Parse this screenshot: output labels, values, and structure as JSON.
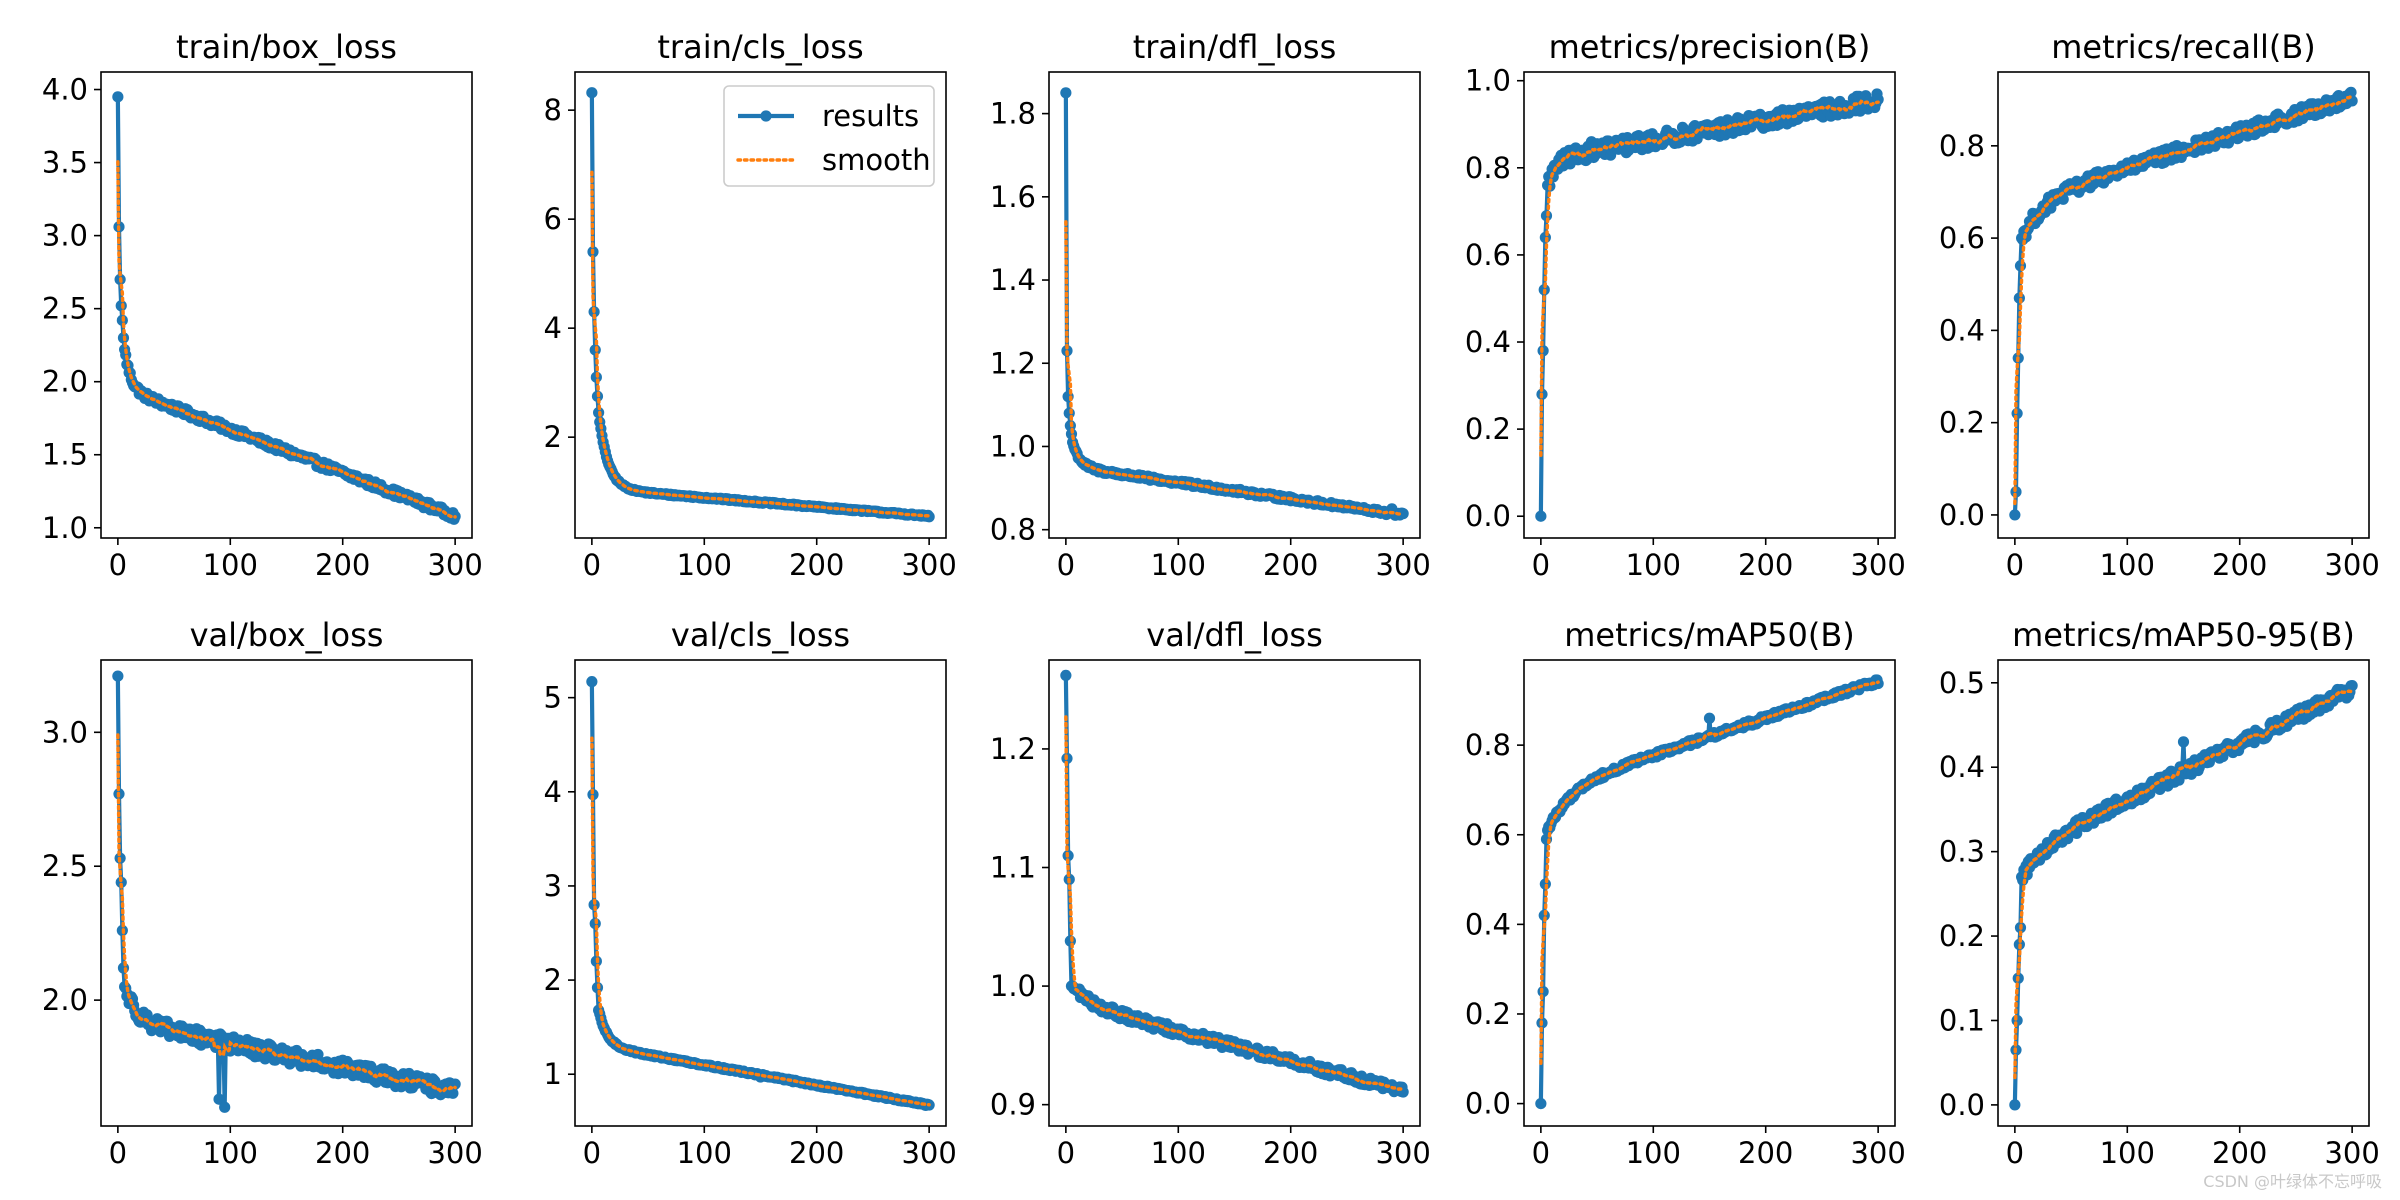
{
  "figure": {
    "watermark": "CSDN @叶绿体不忘呼吸",
    "colors": {
      "results": "#1f77b4",
      "smooth": "#ff7f0e",
      "axes": "#000000",
      "background": "#ffffff"
    },
    "legend": {
      "entries": [
        "results",
        "smooth"
      ],
      "location": "upper-right",
      "panel_index": 1
    }
  },
  "chart_data": [
    {
      "type": "line",
      "title": "train/box_loss",
      "xlim": [
        -15,
        315
      ],
      "ylim": [
        0.93,
        4.12
      ],
      "xticks": [
        0,
        100,
        200,
        300
      ],
      "yticks": [
        1.0,
        1.5,
        2.0,
        2.5,
        3.0,
        3.5,
        4.0
      ],
      "ytick_decimals": 1,
      "curve": {
        "kind": "decay",
        "start": 3.95,
        "head": [
          3.95,
          3.06,
          2.7,
          2.52,
          2.42,
          2.3,
          2.22
        ],
        "plateau": 1.95,
        "k": 0.18,
        "end": 1.08,
        "noise": 0.025,
        "spikes": []
      },
      "series": [
        {
          "name": "results"
        },
        {
          "name": "smooth"
        }
      ]
    },
    {
      "type": "line",
      "title": "train/cls_loss",
      "xlim": [
        -15,
        315
      ],
      "ylim": [
        0.15,
        8.7
      ],
      "xticks": [
        0,
        100,
        200,
        300
      ],
      "yticks": [
        2,
        4,
        6,
        8
      ],
      "ytick_decimals": 0,
      "curve": {
        "kind": "decay",
        "start": 8.32,
        "head": [
          8.32,
          5.4,
          4.3,
          3.6,
          3.1,
          2.75,
          2.45
        ],
        "plateau": 1.05,
        "k": 0.12,
        "end": 0.55,
        "noise": 0.015,
        "spikes": []
      },
      "series": [
        {
          "name": "results"
        },
        {
          "name": "smooth"
        }
      ]
    },
    {
      "type": "line",
      "title": "train/dfl_loss",
      "xlim": [
        -15,
        315
      ],
      "ylim": [
        0.78,
        1.9
      ],
      "xticks": [
        0,
        100,
        200,
        300
      ],
      "yticks": [
        0.8,
        1.0,
        1.2,
        1.4,
        1.6,
        1.8
      ],
      "ytick_decimals": 1,
      "curve": {
        "kind": "decay",
        "start": 1.85,
        "head": [
          1.85,
          1.23,
          1.12,
          1.08,
          1.05,
          1.03,
          1.01
        ],
        "plateau": 0.95,
        "k": 0.15,
        "end": 0.835,
        "noise": 0.005,
        "spikes": [
          [
            290,
            0.85
          ]
        ]
      },
      "series": [
        {
          "name": "results"
        },
        {
          "name": "smooth"
        }
      ]
    },
    {
      "type": "line",
      "title": "metrics/precision(B)",
      "xlim": [
        -15,
        315
      ],
      "ylim": [
        -0.05,
        1.02
      ],
      "xticks": [
        0,
        100,
        200,
        300
      ],
      "yticks": [
        0.0,
        0.2,
        0.4,
        0.6,
        0.8,
        1.0
      ],
      "ytick_decimals": 1,
      "curve": {
        "kind": "rise",
        "start": 0.0,
        "head": [
          0.0,
          0.28,
          0.38,
          0.52,
          0.64,
          0.69,
          0.76
        ],
        "plateau": 0.82,
        "k": 0.12,
        "end": 0.955,
        "noise": 0.018,
        "spikes": [
          [
            145,
            0.88
          ],
          [
            45,
            0.86
          ]
        ]
      },
      "series": [
        {
          "name": "results"
        },
        {
          "name": "smooth"
        }
      ]
    },
    {
      "type": "line",
      "title": "metrics/recall(B)",
      "xlim": [
        -15,
        315
      ],
      "ylim": [
        -0.05,
        0.96
      ],
      "xticks": [
        0,
        100,
        200,
        300
      ],
      "yticks": [
        0.0,
        0.2,
        0.4,
        0.6,
        0.8
      ],
      "ytick_decimals": 1,
      "curve": {
        "kind": "rise",
        "start": 0.0,
        "head": [
          0.0,
          0.05,
          0.22,
          0.34,
          0.47,
          0.54,
          0.6
        ],
        "plateau": 0.68,
        "k": 0.05,
        "end": 0.905,
        "noise": 0.015,
        "spikes": []
      },
      "series": [
        {
          "name": "results"
        },
        {
          "name": "smooth"
        }
      ]
    },
    {
      "type": "line",
      "title": "val/box_loss",
      "xlim": [
        -15,
        315
      ],
      "ylim": [
        1.53,
        3.27
      ],
      "xticks": [
        0,
        100,
        200,
        300
      ],
      "yticks": [
        2.0,
        2.5,
        3.0
      ],
      "ytick_decimals": 1,
      "curve": {
        "kind": "decay",
        "start": 3.21,
        "head": [
          3.21,
          2.77,
          2.53,
          2.44,
          2.26,
          2.12,
          2.05
        ],
        "plateau": 1.92,
        "k": 0.09,
        "end": 1.66,
        "noise": 0.03,
        "spikes": [
          [
            95,
            1.6
          ],
          [
            90,
            1.63
          ]
        ]
      },
      "series": [
        {
          "name": "results"
        },
        {
          "name": "smooth"
        }
      ]
    },
    {
      "type": "line",
      "title": "val/cls_loss",
      "xlim": [
        -15,
        315
      ],
      "ylim": [
        0.45,
        5.4
      ],
      "xticks": [
        0,
        100,
        200,
        300
      ],
      "yticks": [
        1,
        2,
        3,
        4,
        5
      ],
      "ytick_decimals": 0,
      "curve": {
        "kind": "decay",
        "start": 5.17,
        "head": [
          5.17,
          3.97,
          2.8,
          2.6,
          2.2,
          1.92,
          1.68
        ],
        "plateau": 1.3,
        "k": 0.13,
        "end": 0.67,
        "noise": 0.01,
        "spikes": [
          [
            150,
            0.97
          ]
        ]
      },
      "series": [
        {
          "name": "results"
        },
        {
          "name": "smooth"
        }
      ]
    },
    {
      "type": "line",
      "title": "val/dfl_loss",
      "xlim": [
        -15,
        315
      ],
      "ylim": [
        0.882,
        1.275
      ],
      "xticks": [
        0,
        100,
        200,
        300
      ],
      "yticks": [
        0.9,
        1.0,
        1.1,
        1.2
      ],
      "ytick_decimals": 1,
      "curve": {
        "kind": "decay",
        "start": 1.262,
        "head": [
          1.262,
          1.192,
          1.11,
          1.09,
          1.038,
          1.0,
          1.0
        ],
        "plateau": 0.985,
        "k": 0.055,
        "end": 0.912,
        "noise": 0.004,
        "spikes": []
      },
      "series": [
        {
          "name": "results"
        },
        {
          "name": "smooth"
        }
      ]
    },
    {
      "type": "line",
      "title": "metrics/mAP50(B)",
      "xlim": [
        -15,
        315
      ],
      "ylim": [
        -0.05,
        0.99
      ],
      "xticks": [
        0,
        100,
        200,
        300
      ],
      "yticks": [
        0.0,
        0.2,
        0.4,
        0.6,
        0.8
      ],
      "ytick_decimals": 1,
      "curve": {
        "kind": "rise",
        "start": 0.0,
        "head": [
          0.0,
          0.18,
          0.25,
          0.42,
          0.49,
          0.59,
          0.61
        ],
        "plateau": 0.7,
        "k": 0.05,
        "end": 0.943,
        "noise": 0.006,
        "spikes": [
          [
            150,
            0.86
          ]
        ]
      },
      "series": [
        {
          "name": "results"
        },
        {
          "name": "smooth"
        }
      ]
    },
    {
      "type": "line",
      "title": "metrics/mAP50-95(B)",
      "xlim": [
        -15,
        315
      ],
      "ylim": [
        -0.025,
        0.527
      ],
      "xticks": [
        0,
        100,
        200,
        300
      ],
      "yticks": [
        0.0,
        0.1,
        0.2,
        0.3,
        0.4,
        0.5
      ],
      "ytick_decimals": 1,
      "curve": {
        "kind": "rise",
        "start": 0.0,
        "head": [
          0.0,
          0.065,
          0.1,
          0.15,
          0.19,
          0.21,
          0.27
        ],
        "plateau": 0.3,
        "k": 0.05,
        "end": 0.493,
        "noise": 0.008,
        "spikes": [
          [
            150,
            0.43
          ]
        ]
      },
      "series": [
        {
          "name": "results"
        },
        {
          "name": "smooth"
        }
      ]
    }
  ]
}
